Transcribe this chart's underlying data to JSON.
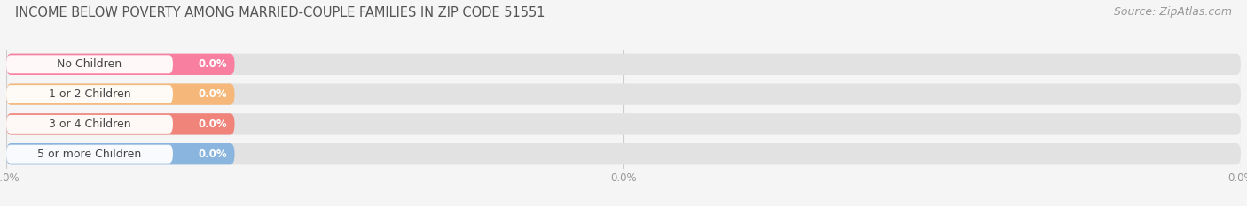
{
  "title": "INCOME BELOW POVERTY AMONG MARRIED-COUPLE FAMILIES IN ZIP CODE 51551",
  "source": "Source: ZipAtlas.com",
  "categories": [
    "No Children",
    "1 or 2 Children",
    "3 or 4 Children",
    "5 or more Children"
  ],
  "values": [
    0.0,
    0.0,
    0.0,
    0.0
  ],
  "bar_colors": [
    "#f97fa0",
    "#f5b87a",
    "#f0837a",
    "#8ab5df"
  ],
  "bg_color": "#f5f5f5",
  "bar_bg_color": "#e2e2e2",
  "title_fontsize": 10.5,
  "source_fontsize": 9,
  "label_fontsize": 9,
  "value_fontsize": 8.5
}
